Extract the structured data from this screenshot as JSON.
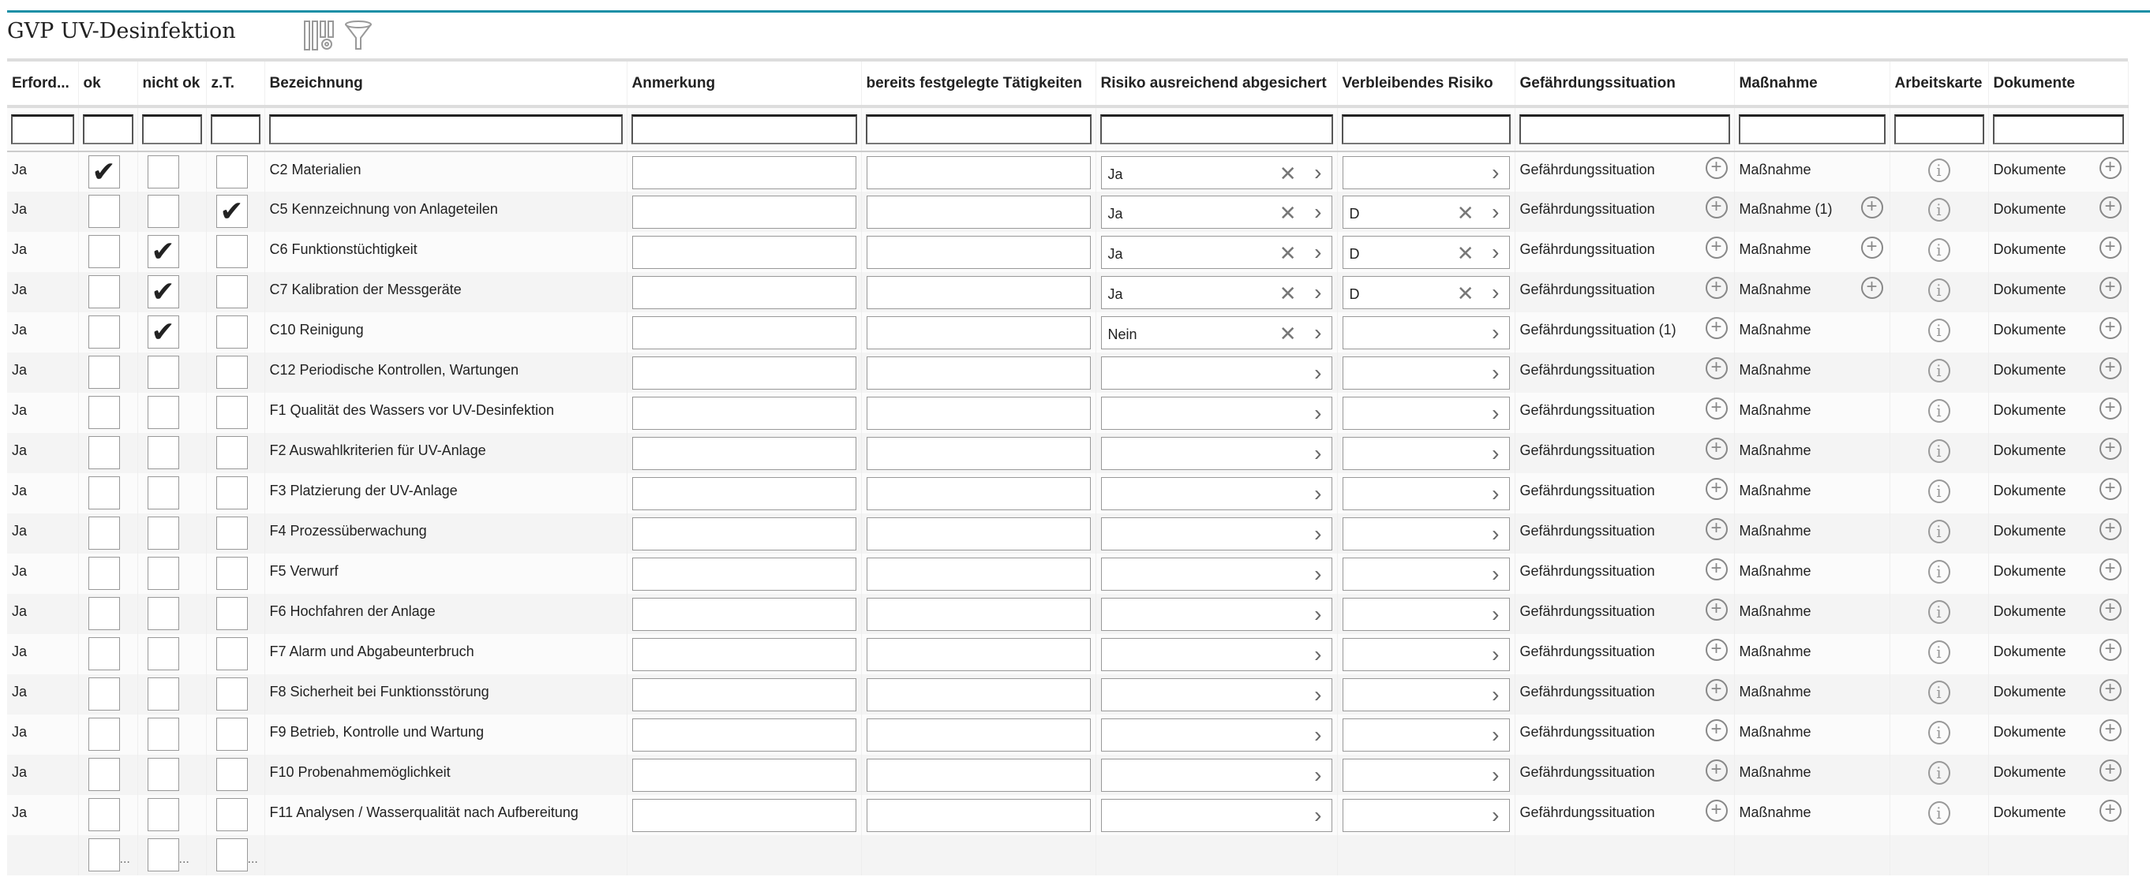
{
  "title": "GVP UV-Desinfektion",
  "toolbar": {
    "icons": [
      "column-settings-icon",
      "filter-icon"
    ]
  },
  "colors": {
    "accent": "#1a8fa6",
    "row_odd": "#f4f4f4",
    "row_even": "#fbfbfb"
  },
  "columns": [
    "Erford...",
    "ok",
    "nicht ok",
    "z.T.",
    "Bezeichnung",
    "Anmerkung",
    "bereits festgelegte Tätigkeiten",
    "Risiko ausreichend abgesichert",
    "Verbleibendes Risiko",
    "Gefährdungssituation",
    "Maßnahme",
    "Arbeitskarte",
    "Dokumente"
  ],
  "rows": [
    {
      "erford": "Ja",
      "ok": true,
      "nicht_ok": false,
      "zt": false,
      "bezeichnung": "C2 Materialien",
      "anmerkung": "",
      "taetigkeiten": "",
      "risiko": "Ja",
      "verbleibend": "",
      "gefaehrdung": "Gefährdungssituation",
      "massnahme": "Maßnahme",
      "massnahme_add": false,
      "dokumente": "Dokumente"
    },
    {
      "erford": "Ja",
      "ok": false,
      "nicht_ok": false,
      "zt": true,
      "bezeichnung": "C5 Kennzeichnung von Anlageteilen",
      "anmerkung": "",
      "taetigkeiten": "",
      "risiko": "Ja",
      "verbleibend": "D",
      "gefaehrdung": "Gefährdungssituation",
      "massnahme": "Maßnahme (1)",
      "massnahme_add": true,
      "dokumente": "Dokumente"
    },
    {
      "erford": "Ja",
      "ok": false,
      "nicht_ok": true,
      "zt": false,
      "bezeichnung": "C6 Funktionstüchtigkeit",
      "anmerkung": "",
      "taetigkeiten": "",
      "risiko": "Ja",
      "verbleibend": "D",
      "gefaehrdung": "Gefährdungssituation",
      "massnahme": "Maßnahme",
      "massnahme_add": true,
      "dokumente": "Dokumente"
    },
    {
      "erford": "Ja",
      "ok": false,
      "nicht_ok": true,
      "zt": false,
      "bezeichnung": "C7 Kalibration der Messgeräte",
      "anmerkung": "",
      "taetigkeiten": "",
      "risiko": "Ja",
      "verbleibend": "D",
      "gefaehrdung": "Gefährdungssituation",
      "massnahme": "Maßnahme",
      "massnahme_add": true,
      "dokumente": "Dokumente"
    },
    {
      "erford": "Ja",
      "ok": false,
      "nicht_ok": true,
      "zt": false,
      "bezeichnung": "C10 Reinigung",
      "anmerkung": "",
      "taetigkeiten": "",
      "risiko": "Nein",
      "verbleibend": "",
      "gefaehrdung": "Gefährdungssituation (1)",
      "massnahme": "Maßnahme",
      "massnahme_add": false,
      "dokumente": "Dokumente"
    },
    {
      "erford": "Ja",
      "ok": false,
      "nicht_ok": false,
      "zt": false,
      "bezeichnung": "C12 Periodische Kontrollen, Wartungen",
      "anmerkung": "",
      "taetigkeiten": "",
      "risiko": "",
      "verbleibend": "",
      "gefaehrdung": "Gefährdungssituation",
      "massnahme": "Maßnahme",
      "massnahme_add": false,
      "dokumente": "Dokumente"
    },
    {
      "erford": "Ja",
      "ok": false,
      "nicht_ok": false,
      "zt": false,
      "bezeichnung": "F1 Qualität des Wassers vor UV-Desinfektion",
      "anmerkung": "",
      "taetigkeiten": "",
      "risiko": "",
      "verbleibend": "",
      "gefaehrdung": "Gefährdungssituation",
      "massnahme": "Maßnahme",
      "massnahme_add": false,
      "dokumente": "Dokumente"
    },
    {
      "erford": "Ja",
      "ok": false,
      "nicht_ok": false,
      "zt": false,
      "bezeichnung": "F2 Auswahlkriterien für UV-Anlage",
      "anmerkung": "",
      "taetigkeiten": "",
      "risiko": "",
      "verbleibend": "",
      "gefaehrdung": "Gefährdungssituation",
      "massnahme": "Maßnahme",
      "massnahme_add": false,
      "dokumente": "Dokumente"
    },
    {
      "erford": "Ja",
      "ok": false,
      "nicht_ok": false,
      "zt": false,
      "bezeichnung": "F3 Platzierung der UV-Anlage",
      "anmerkung": "",
      "taetigkeiten": "",
      "risiko": "",
      "verbleibend": "",
      "gefaehrdung": "Gefährdungssituation",
      "massnahme": "Maßnahme",
      "massnahme_add": false,
      "dokumente": "Dokumente"
    },
    {
      "erford": "Ja",
      "ok": false,
      "nicht_ok": false,
      "zt": false,
      "bezeichnung": "F4 Prozessüberwachung",
      "anmerkung": "",
      "taetigkeiten": "",
      "risiko": "",
      "verbleibend": "",
      "gefaehrdung": "Gefährdungssituation",
      "massnahme": "Maßnahme",
      "massnahme_add": false,
      "dokumente": "Dokumente"
    },
    {
      "erford": "Ja",
      "ok": false,
      "nicht_ok": false,
      "zt": false,
      "bezeichnung": "F5 Verwurf",
      "anmerkung": "",
      "taetigkeiten": "",
      "risiko": "",
      "verbleibend": "",
      "gefaehrdung": "Gefährdungssituation",
      "massnahme": "Maßnahme",
      "massnahme_add": false,
      "dokumente": "Dokumente"
    },
    {
      "erford": "Ja",
      "ok": false,
      "nicht_ok": false,
      "zt": false,
      "bezeichnung": "F6 Hochfahren der Anlage",
      "anmerkung": "",
      "taetigkeiten": "",
      "risiko": "",
      "verbleibend": "",
      "gefaehrdung": "Gefährdungssituation",
      "massnahme": "Maßnahme",
      "massnahme_add": false,
      "dokumente": "Dokumente"
    },
    {
      "erford": "Ja",
      "ok": false,
      "nicht_ok": false,
      "zt": false,
      "bezeichnung": "F7 Alarm und Abgabeunterbruch",
      "anmerkung": "",
      "taetigkeiten": "",
      "risiko": "",
      "verbleibend": "",
      "gefaehrdung": "Gefährdungssituation",
      "massnahme": "Maßnahme",
      "massnahme_add": false,
      "dokumente": "Dokumente"
    },
    {
      "erford": "Ja",
      "ok": false,
      "nicht_ok": false,
      "zt": false,
      "bezeichnung": "F8 Sicherheit bei Funktionsstörung",
      "anmerkung": "",
      "taetigkeiten": "",
      "risiko": "",
      "verbleibend": "",
      "gefaehrdung": "Gefährdungssituation",
      "massnahme": "Maßnahme",
      "massnahme_add": false,
      "dokumente": "Dokumente"
    },
    {
      "erford": "Ja",
      "ok": false,
      "nicht_ok": false,
      "zt": false,
      "bezeichnung": "F9 Betrieb, Kontrolle und Wartung",
      "anmerkung": "",
      "taetigkeiten": "",
      "risiko": "",
      "verbleibend": "",
      "gefaehrdung": "Gefährdungssituation",
      "massnahme": "Maßnahme",
      "massnahme_add": false,
      "dokumente": "Dokumente"
    },
    {
      "erford": "Ja",
      "ok": false,
      "nicht_ok": false,
      "zt": false,
      "bezeichnung": "F10 Probenahmemöglichkeit",
      "anmerkung": "",
      "taetigkeiten": "",
      "risiko": "",
      "verbleibend": "",
      "gefaehrdung": "Gefährdungssituation",
      "massnahme": "Maßnahme",
      "massnahme_add": false,
      "dokumente": "Dokumente"
    },
    {
      "erford": "Ja",
      "ok": false,
      "nicht_ok": false,
      "zt": false,
      "bezeichnung": "F11 Analysen / Wasserqualität nach Aufbereitung",
      "anmerkung": "",
      "taetigkeiten": "",
      "risiko": "",
      "verbleibend": "",
      "gefaehrdung": "Gefährdungssituation",
      "massnahme": "Maßnahme",
      "massnahme_add": false,
      "dokumente": "Dokumente"
    }
  ],
  "footer": {
    "ellipsis": "..."
  }
}
